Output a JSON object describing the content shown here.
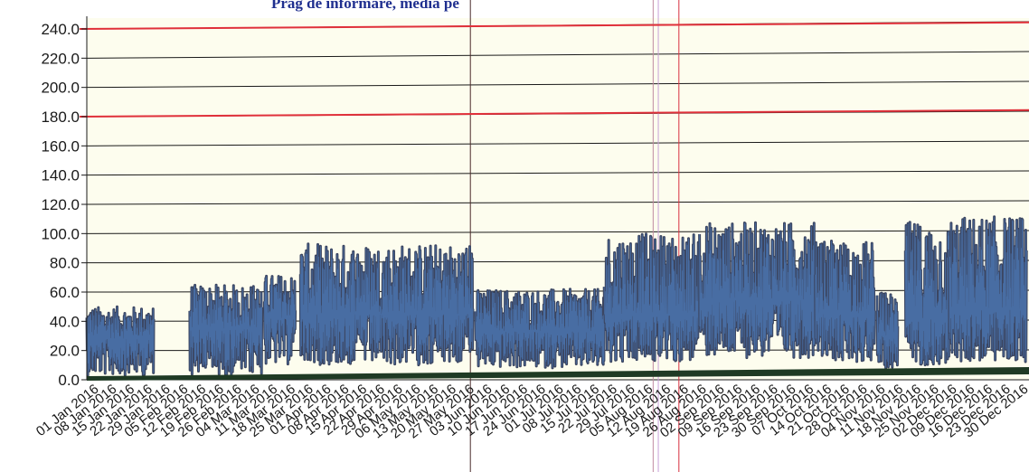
{
  "chart_data": {
    "type": "line",
    "title": "Prag de informare, media pe",
    "xlabel": "",
    "ylabel": "",
    "ylim": [
      0,
      240
    ],
    "y_ticks": [
      "0.0",
      "20.0",
      "40.0",
      "60.0",
      "80.0",
      "100.0",
      "120.0",
      "140.0",
      "160.0",
      "180.0",
      "200.0",
      "220.0",
      "240.0"
    ],
    "x_ticks": [
      "01 Jan 2016",
      "08 Jan 2016",
      "15 Jan 2016",
      "22 Jan 2016",
      "29 Jan 2016",
      "05 Feb 2016",
      "12 Feb 2016",
      "19 Feb 2016",
      "26 Feb 2016",
      "04 Mar 2016",
      "11 Mar 2016",
      "18 Mar 2016",
      "25 Mar 2016",
      "01 Apr 2016",
      "08 Apr 2016",
      "15 Apr 2016",
      "22 Apr 2016",
      "29 Apr 2016",
      "06 May 2016",
      "13 May 2016",
      "20 May 2016",
      "27 May 2016",
      "03 Jun 2016",
      "10 Jun 2016",
      "17 Jun 2016",
      "24 Jun 2016",
      "01 Jul 2016",
      "08 Jul 2016",
      "15 Jul 2016",
      "22 Jul 2016",
      "29 Jul 2016",
      "05 Aug 2016",
      "12 Aug 2016",
      "19 Aug 2016",
      "26 Aug 2016",
      "02 Sep 2016",
      "09 Sep 2016",
      "16 Sep 2016",
      "23 Sep 2016",
      "30 Sep 2016",
      "07 Oct 2016",
      "14 Oct 2016",
      "21 Oct 2016",
      "28 Oct 2016",
      "04 Nov 2016",
      "11 Nov 2016",
      "18 Nov 2016",
      "25 Nov 2016",
      "02 Dec 2016",
      "09 Dec 2016",
      "16 Dec 2016",
      "23 Dec 2016",
      "30 Dec 2016"
    ],
    "threshold_lines": [
      {
        "y_start": 240,
        "y_end": 250,
        "color": "#e0303a"
      },
      {
        "y_start": 180,
        "y_end": 190,
        "color": "#e0303a"
      }
    ],
    "baseline": {
      "y": 0,
      "color": "#1f3a24"
    },
    "series": [
      {
        "color": "#3b4560",
        "highlight_color": "#4f7fc0",
        "segments": [
          {
            "from": "2016-01-01",
            "to": "2016-01-27",
            "low": 3,
            "high": 50,
            "mid": 28
          },
          {
            "from": "2016-02-10",
            "to": "2016-03-09",
            "low": 3,
            "high": 65,
            "mid": 35
          },
          {
            "from": "2016-03-10",
            "to": "2016-03-22",
            "low": 10,
            "high": 72,
            "mid": 42
          },
          {
            "from": "2016-03-24",
            "to": "2016-05-30",
            "low": 10,
            "high": 93,
            "mid": 45
          },
          {
            "from": "2016-05-31",
            "to": "2016-07-20",
            "low": 8,
            "high": 62,
            "mid": 33
          },
          {
            "from": "2016-07-20",
            "to": "2016-08-26",
            "low": 12,
            "high": 100,
            "mid": 45
          },
          {
            "from": "2016-08-26",
            "to": "2016-10-10",
            "low": 15,
            "high": 108,
            "mid": 55
          },
          {
            "from": "2016-10-10",
            "to": "2016-11-02",
            "low": 12,
            "high": 95,
            "mid": 45
          },
          {
            "from": "2016-11-03",
            "to": "2016-11-11",
            "low": 8,
            "high": 60,
            "mid": 30
          },
          {
            "from": "2016-11-14",
            "to": "2016-12-01",
            "low": 10,
            "high": 108,
            "mid": 42
          },
          {
            "from": "2016-12-01",
            "to": "2016-12-31",
            "low": 12,
            "high": 112,
            "mid": 48
          }
        ]
      }
    ],
    "grid": true,
    "vertical_markers": [
      {
        "date": "2016-05-29",
        "color": "#4a2a2a"
      },
      {
        "date": "2016-08-08",
        "color": "#c08aa0"
      },
      {
        "date": "2016-08-10",
        "color": "#c8a0d8"
      },
      {
        "date": "2016-08-18",
        "color": "#d83040"
      }
    ]
  }
}
